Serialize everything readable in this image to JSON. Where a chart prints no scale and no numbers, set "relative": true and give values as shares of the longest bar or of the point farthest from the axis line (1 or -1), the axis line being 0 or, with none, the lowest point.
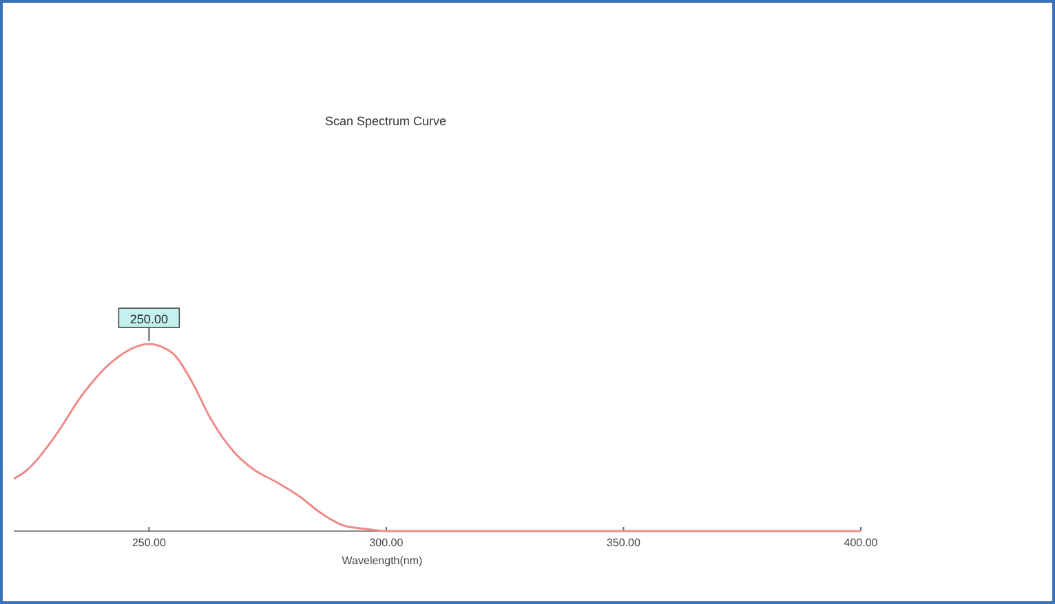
{
  "chart_data": {
    "type": "line",
    "title": "Scan Spectrum Curve",
    "xlabel": "Wavelength(nm)",
    "relative": true,
    "xlim": [
      221.5,
      400
    ],
    "xticks": [
      {
        "value": 250,
        "label": "250.00"
      },
      {
        "value": 300,
        "label": "300.00"
      },
      {
        "value": 350,
        "label": "350.00"
      },
      {
        "value": 400,
        "label": "400.00"
      }
    ],
    "x": [
      221.5,
      224,
      230,
      236,
      242,
      250,
      255,
      259,
      263,
      268,
      272,
      277,
      282,
      286,
      291,
      296,
      300,
      350,
      400
    ],
    "series": [
      {
        "color": "#f08a8a",
        "values": [
          0.28,
          0.32,
          0.5,
          0.73,
          0.9,
          1,
          0.95,
          0.8,
          0.6,
          0.42,
          0.33,
          0.26,
          0.18,
          0.1,
          0.03,
          0.01,
          0,
          0,
          0
        ]
      }
    ],
    "annotations": [
      {
        "text": "250.00",
        "x": 250,
        "y": 1
      }
    ],
    "grid": false,
    "marker": "none",
    "line_style": "solid"
  }
}
